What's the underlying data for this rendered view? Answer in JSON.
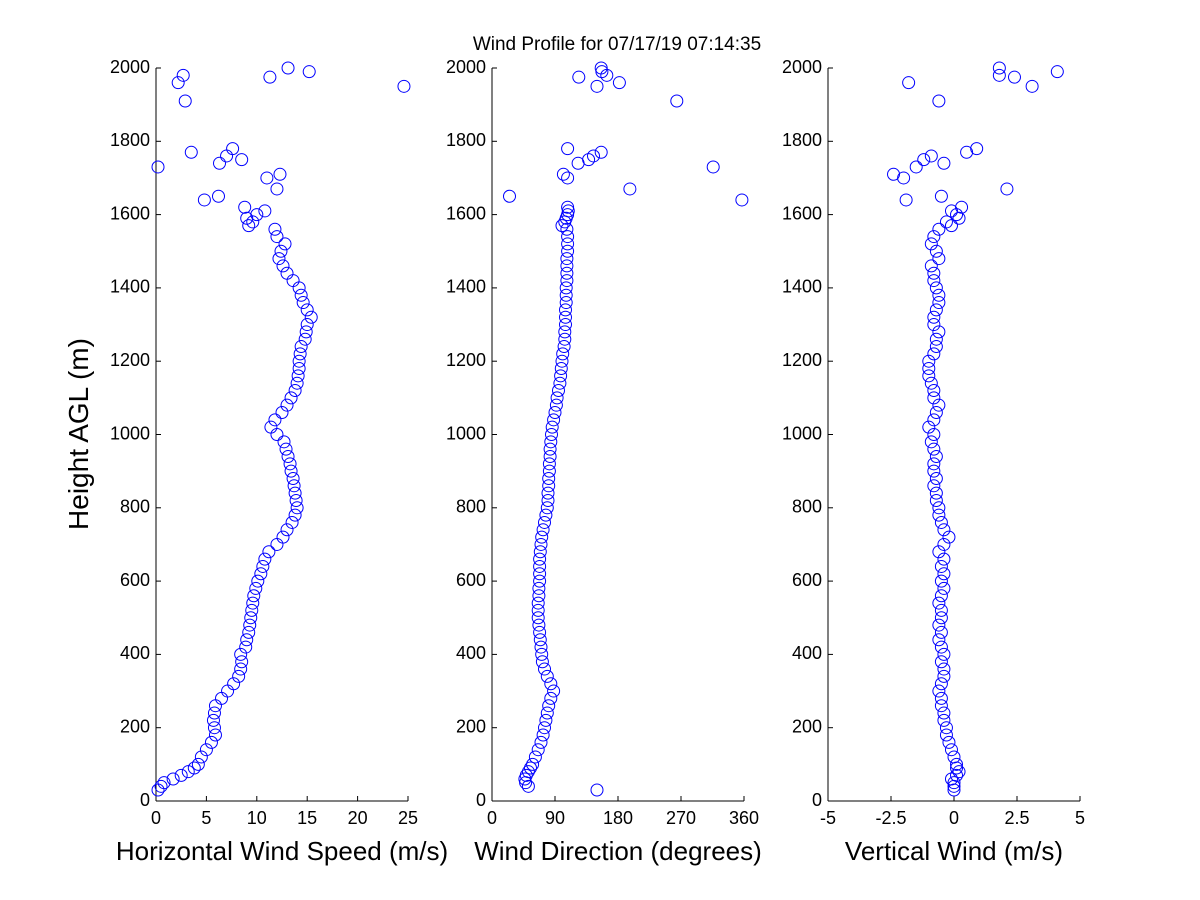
{
  "title": "Wind Profile for  07/17/19 07:14:35",
  "chart_data": [
    {
      "type": "scatter",
      "xlabel": "Horizontal Wind Speed (m/s)",
      "ylabel": "Height AGL (m)",
      "color": "#0000ff",
      "x": [
        0.2,
        0.5,
        0.8,
        1.7,
        2.5,
        3.2,
        3.8,
        4.2,
        4.5,
        5,
        5.5,
        5.9,
        5.8,
        5.7,
        5.8,
        5.9,
        6.5,
        7.1,
        7.7,
        8.2,
        8.4,
        8.5,
        8.4,
        8.9,
        9.0,
        9.2,
        9.3,
        9.4,
        9.5,
        9.6,
        9.7,
        9.9,
        10.1,
        10.4,
        10.6,
        10.8,
        11.2,
        12.0,
        12.6,
        13.0,
        13.5,
        13.8,
        14.0,
        13.9,
        13.8,
        13.7,
        13.6,
        13.4,
        13.3,
        13.1,
        12.9,
        12.7,
        12.0,
        11.4,
        11.8,
        12.5,
        13.0,
        13.4,
        13.8,
        14.0,
        14.1,
        14.2,
        14.2,
        14.3,
        14.4,
        14.8,
        14.9,
        15.0,
        15.4,
        15.0,
        14.6,
        14.4,
        14.2,
        13.6,
        13.0,
        12.6,
        12.2,
        12.4,
        12.8,
        12.0,
        11.8,
        9.2,
        9.6,
        9.0,
        10.0,
        10.8,
        8.8,
        4.8,
        6.2,
        12.0,
        11.0,
        12.3,
        0.2,
        6.3,
        8.5,
        7.0,
        3.5,
        7.6,
        2.9,
        24.6,
        2.2,
        11.3,
        2.7,
        15.2,
        13.1
      ],
      "values": [
        30,
        40,
        50,
        60,
        70,
        80,
        90,
        100,
        120,
        140,
        160,
        180,
        200,
        220,
        240,
        260,
        280,
        300,
        320,
        340,
        360,
        380,
        400,
        420,
        440,
        460,
        480,
        500,
        520,
        540,
        560,
        580,
        600,
        620,
        640,
        660,
        680,
        700,
        720,
        740,
        760,
        780,
        800,
        820,
        840,
        860,
        880,
        900,
        920,
        940,
        960,
        980,
        1000,
        1020,
        1040,
        1060,
        1080,
        1100,
        1120,
        1140,
        1160,
        1180,
        1200,
        1220,
        1240,
        1260,
        1280,
        1300,
        1320,
        1340,
        1360,
        1380,
        1400,
        1420,
        1440,
        1460,
        1480,
        1500,
        1520,
        1540,
        1560,
        1570,
        1580,
        1590,
        1600,
        1610,
        1620,
        1640,
        1650,
        1670,
        1700,
        1710,
        1730,
        1740,
        1750,
        1760,
        1770,
        1780,
        1910,
        1950,
        1960,
        1975,
        1980,
        1990,
        2000
      ],
      "xlim": [
        0,
        25
      ],
      "xticks": [
        0,
        5,
        10,
        15,
        20,
        25
      ],
      "ylim": [
        0,
        2000
      ],
      "yticks": [
        0,
        200,
        400,
        600,
        800,
        1000,
        1200,
        1400,
        1600,
        1800,
        2000
      ]
    },
    {
      "type": "scatter",
      "xlabel": "Wind Direction (degrees)",
      "color": "#0000ff",
      "x": [
        150,
        52,
        48,
        47,
        49,
        52,
        55,
        58,
        62,
        66,
        70,
        73,
        75,
        77,
        79,
        81,
        84,
        88,
        84,
        79,
        75,
        72,
        71,
        70,
        69,
        68,
        67,
        66,
        66,
        66,
        67,
        67,
        68,
        68,
        68,
        68,
        69,
        70,
        71,
        73,
        75,
        77,
        79,
        80,
        80,
        81,
        81,
        82,
        82,
        83,
        83,
        84,
        85,
        86,
        88,
        90,
        92,
        93,
        95,
        97,
        98,
        99,
        100,
        101,
        103,
        104,
        104,
        105,
        105,
        105,
        106,
        106,
        106,
        107,
        107,
        107,
        107,
        108,
        108,
        108,
        107,
        100,
        104,
        106,
        108,
        109,
        108,
        357,
        25,
        197,
        108,
        102,
        316,
        123,
        138,
        145,
        156,
        108,
        264,
        150,
        182,
        124,
        164,
        157,
        156
      ],
      "values": [
        30,
        40,
        50,
        60,
        70,
        80,
        90,
        100,
        120,
        140,
        160,
        180,
        200,
        220,
        240,
        260,
        280,
        300,
        320,
        340,
        360,
        380,
        400,
        420,
        440,
        460,
        480,
        500,
        520,
        540,
        560,
        580,
        600,
        620,
        640,
        660,
        680,
        700,
        720,
        740,
        760,
        780,
        800,
        820,
        840,
        860,
        880,
        900,
        920,
        940,
        960,
        980,
        1000,
        1020,
        1040,
        1060,
        1080,
        1100,
        1120,
        1140,
        1160,
        1180,
        1200,
        1220,
        1240,
        1260,
        1280,
        1300,
        1320,
        1340,
        1360,
        1380,
        1400,
        1420,
        1440,
        1460,
        1480,
        1500,
        1520,
        1540,
        1560,
        1570,
        1580,
        1590,
        1600,
        1610,
        1620,
        1640,
        1650,
        1670,
        1700,
        1710,
        1730,
        1740,
        1750,
        1760,
        1770,
        1780,
        1910,
        1950,
        1960,
        1975,
        1980,
        1990,
        2000
      ],
      "xlim": [
        0,
        360
      ],
      "xticks": [
        0,
        90,
        180,
        270,
        360
      ],
      "ylim": [
        0,
        2000
      ],
      "yticks": [
        0,
        200,
        400,
        600,
        800,
        1000,
        1200,
        1400,
        1600,
        1800,
        2000
      ]
    },
    {
      "type": "scatter",
      "xlabel": "Vertical Wind (m/s)",
      "color": "#0000ff",
      "x": [
        0,
        0,
        0,
        -0.1,
        0.1,
        0.2,
        0.1,
        0.1,
        0,
        -0.1,
        -0.2,
        -0.3,
        -0.3,
        -0.4,
        -0.4,
        -0.5,
        -0.5,
        -0.6,
        -0.5,
        -0.4,
        -0.4,
        -0.5,
        -0.4,
        -0.5,
        -0.6,
        -0.5,
        -0.6,
        -0.5,
        -0.5,
        -0.6,
        -0.5,
        -0.4,
        -0.5,
        -0.4,
        -0.5,
        -0.4,
        -0.6,
        -0.4,
        -0.2,
        -0.4,
        -0.5,
        -0.6,
        -0.6,
        -0.7,
        -0.7,
        -0.8,
        -0.7,
        -0.8,
        -0.8,
        -0.7,
        -0.8,
        -0.9,
        -0.8,
        -1.0,
        -0.8,
        -0.7,
        -0.6,
        -0.8,
        -0.8,
        -0.9,
        -1.0,
        -1.0,
        -1.0,
        -0.8,
        -0.7,
        -0.7,
        -0.6,
        -0.8,
        -0.8,
        -0.7,
        -0.6,
        -0.6,
        -0.7,
        -0.8,
        -0.8,
        -0.9,
        -0.6,
        -0.7,
        -0.9,
        -0.8,
        -0.6,
        -0.1,
        -0.3,
        0.2,
        0.1,
        -0.1,
        0.3,
        -1.9,
        -0.5,
        2.1,
        -2.0,
        -2.4,
        -1.5,
        -0.4,
        -1.2,
        -0.9,
        0.5,
        0.9,
        -0.6,
        3.1,
        -1.8,
        2.4,
        1.8,
        4.1,
        1.8
      ],
      "values": [
        30,
        40,
        50,
        60,
        70,
        80,
        90,
        100,
        120,
        140,
        160,
        180,
        200,
        220,
        240,
        260,
        280,
        300,
        320,
        340,
        360,
        380,
        400,
        420,
        440,
        460,
        480,
        500,
        520,
        540,
        560,
        580,
        600,
        620,
        640,
        660,
        680,
        700,
        720,
        740,
        760,
        780,
        800,
        820,
        840,
        860,
        880,
        900,
        920,
        940,
        960,
        980,
        1000,
        1020,
        1040,
        1060,
        1080,
        1100,
        1120,
        1140,
        1160,
        1180,
        1200,
        1220,
        1240,
        1260,
        1280,
        1300,
        1320,
        1340,
        1360,
        1380,
        1400,
        1420,
        1440,
        1460,
        1480,
        1500,
        1520,
        1540,
        1560,
        1570,
        1580,
        1590,
        1600,
        1610,
        1620,
        1640,
        1650,
        1670,
        1700,
        1710,
        1730,
        1740,
        1750,
        1760,
        1770,
        1780,
        1910,
        1950,
        1960,
        1975,
        1980,
        1990,
        2000
      ],
      "xlim": [
        -5,
        5
      ],
      "xticks": [
        -5,
        -2.5,
        0,
        2.5,
        5
      ],
      "ylim": [
        0,
        2000
      ],
      "yticks": [
        0,
        200,
        400,
        600,
        800,
        1000,
        1200,
        1400,
        1600,
        1800,
        2000
      ]
    }
  ]
}
